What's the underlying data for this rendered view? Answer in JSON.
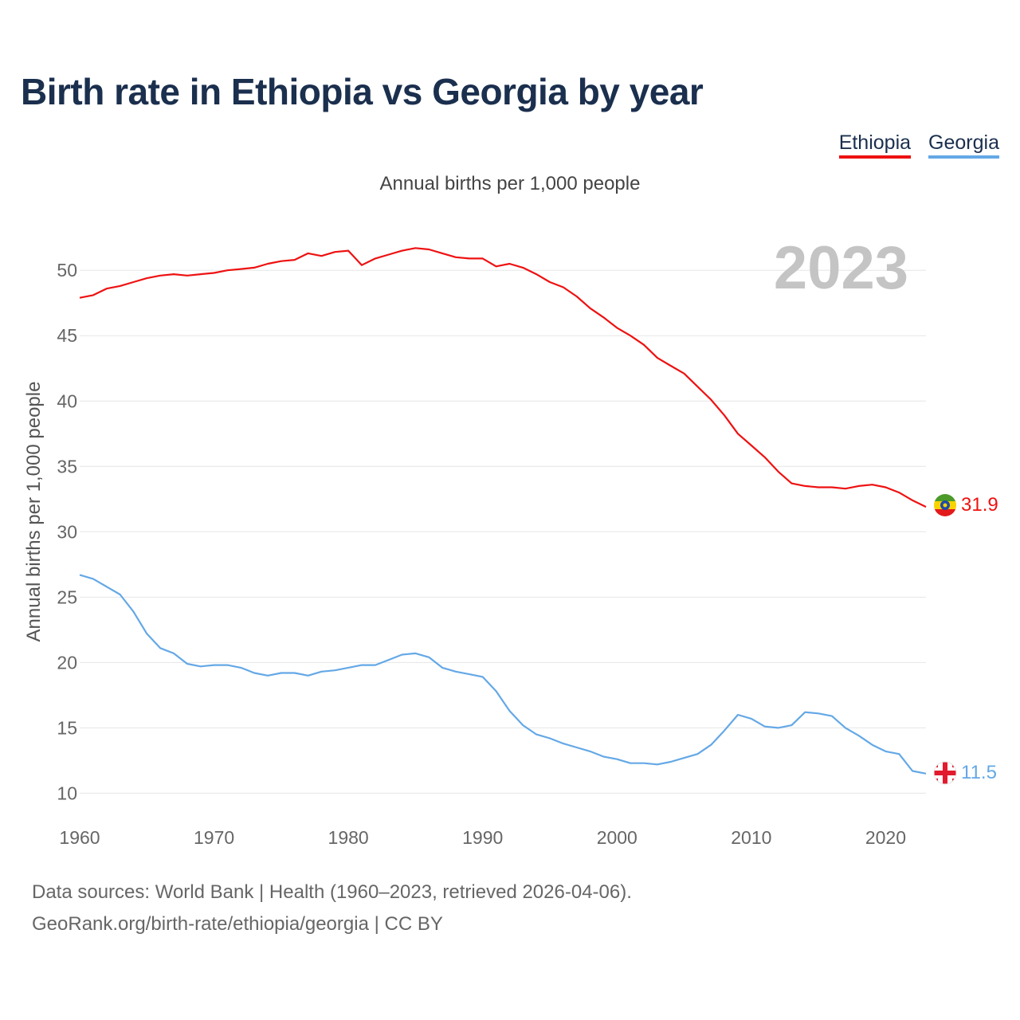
{
  "title": "Birth rate in Ethiopia vs Georgia by year",
  "subtitle": "Annual births per 1,000 people",
  "year_label": "2023",
  "footer": {
    "line1": "Data sources: World Bank | Health (1960–2023, retrieved 2026-04-06).",
    "line2": "GeoRank.org/birth-rate/ethiopia/georgia | CC BY"
  },
  "legend": [
    {
      "name": "Ethiopia",
      "color": "#ee1111"
    },
    {
      "name": "Georgia",
      "color": "#64a8e6"
    }
  ],
  "flags": {
    "ethiopia": "ethiopia-flag-icon",
    "georgia": "georgia-flag-icon"
  },
  "chart_data": {
    "type": "line",
    "title": "Birth rate in Ethiopia vs Georgia by year",
    "ylabel": "Annual births per 1,000 people",
    "xlabel": "",
    "xlim": [
      1960,
      2023
    ],
    "ylim": [
      8.5,
      53
    ],
    "x_ticks": [
      1960,
      1970,
      1980,
      1990,
      2000,
      2010,
      2020
    ],
    "y_ticks": [
      10,
      15,
      20,
      25,
      30,
      35,
      40,
      45,
      50
    ],
    "grid": true,
    "x": [
      1960,
      1961,
      1962,
      1963,
      1964,
      1965,
      1966,
      1967,
      1968,
      1969,
      1970,
      1971,
      1972,
      1973,
      1974,
      1975,
      1976,
      1977,
      1978,
      1979,
      1980,
      1981,
      1982,
      1983,
      1984,
      1985,
      1986,
      1987,
      1988,
      1989,
      1990,
      1991,
      1992,
      1993,
      1994,
      1995,
      1996,
      1997,
      1998,
      1999,
      2000,
      2001,
      2002,
      2003,
      2004,
      2005,
      2006,
      2007,
      2008,
      2009,
      2010,
      2011,
      2012,
      2013,
      2014,
      2015,
      2016,
      2017,
      2018,
      2019,
      2020,
      2021,
      2022,
      2023
    ],
    "series": [
      {
        "name": "Ethiopia",
        "color": "#ee1111",
        "end_label": "31.9",
        "values": [
          47.9,
          48.1,
          48.6,
          48.8,
          49.1,
          49.4,
          49.6,
          49.7,
          49.6,
          49.7,
          49.8,
          50.0,
          50.1,
          50.2,
          50.5,
          50.7,
          50.8,
          51.3,
          51.1,
          51.4,
          51.5,
          50.4,
          50.9,
          51.2,
          51.5,
          51.7,
          51.6,
          51.3,
          51.0,
          50.9,
          50.9,
          50.3,
          50.5,
          50.2,
          49.7,
          49.1,
          48.7,
          48.0,
          47.1,
          46.4,
          45.6,
          45.0,
          44.3,
          43.3,
          42.7,
          42.1,
          41.1,
          40.1,
          38.9,
          37.5,
          36.6,
          35.7,
          34.6,
          33.7,
          33.5,
          33.4,
          33.4,
          33.3,
          33.5,
          33.6,
          33.4,
          33.0,
          32.4,
          31.9
        ]
      },
      {
        "name": "Georgia",
        "color": "#64a8e6",
        "end_label": "11.5",
        "values": [
          26.7,
          26.4,
          25.8,
          25.2,
          23.9,
          22.2,
          21.1,
          20.7,
          19.9,
          19.7,
          19.8,
          19.8,
          19.6,
          19.2,
          19.0,
          19.2,
          19.2,
          19.0,
          19.3,
          19.4,
          19.6,
          19.8,
          19.8,
          20.2,
          20.6,
          20.7,
          20.4,
          19.6,
          19.3,
          19.1,
          18.9,
          17.8,
          16.3,
          15.2,
          14.5,
          14.2,
          13.8,
          13.5,
          13.2,
          12.8,
          12.6,
          12.3,
          12.3,
          12.2,
          12.4,
          12.7,
          13.0,
          13.7,
          14.8,
          16.0,
          15.7,
          15.1,
          15.0,
          15.2,
          16.2,
          16.1,
          15.9,
          15.0,
          14.4,
          13.7,
          13.2,
          13.0,
          11.7,
          11.5
        ]
      }
    ]
  }
}
